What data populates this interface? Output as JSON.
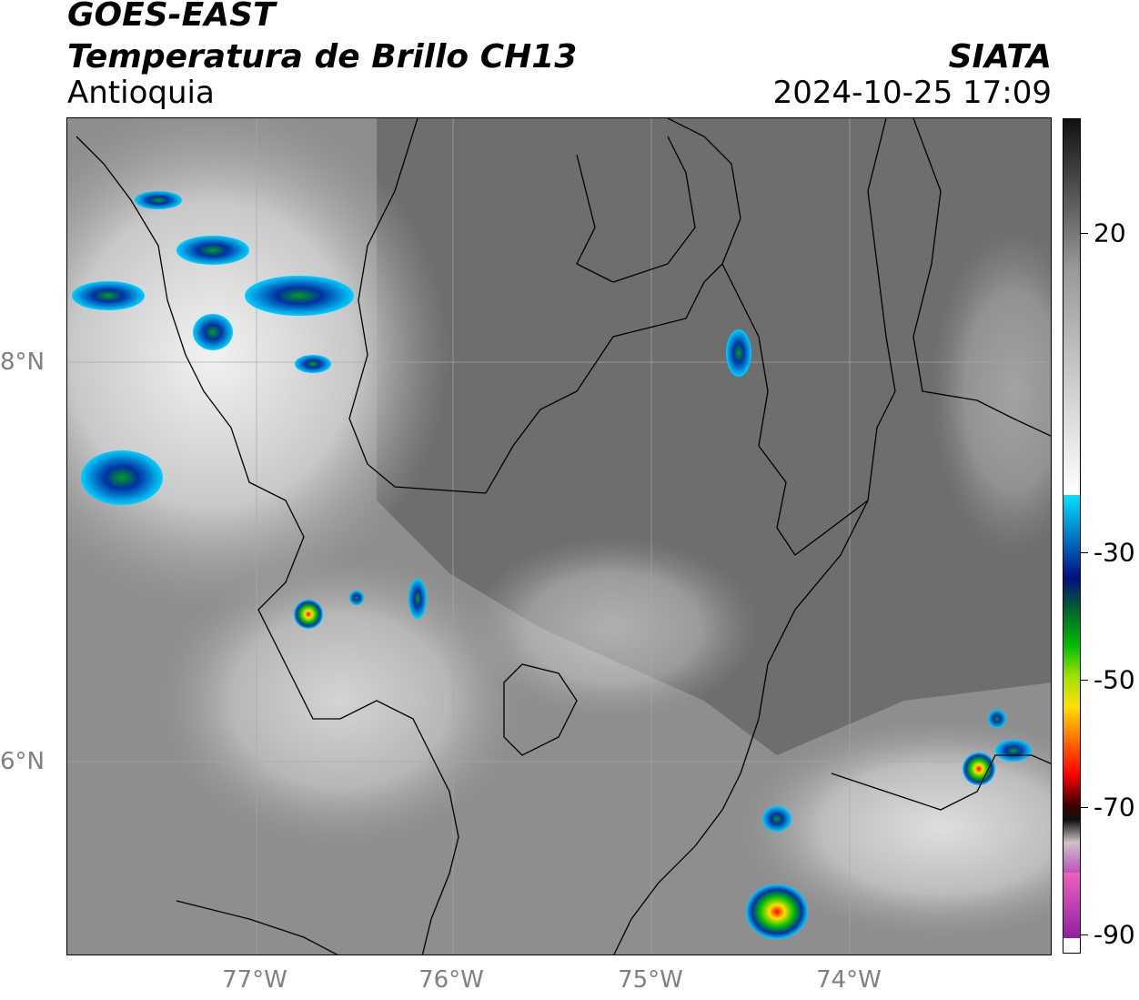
{
  "header": {
    "satellite": "GOES-EAST",
    "product": "Temperatura de Brillo CH13",
    "region": "Antioquia",
    "organization": "SIATA",
    "datetime": "2024-10-25 17:09"
  },
  "map": {
    "latitude_labels": [
      "8°N",
      "6°N"
    ],
    "longitude_labels": [
      "77°W",
      "76°W",
      "75°W",
      "74°W"
    ],
    "lat_range": [
      5.08,
      9.3
    ],
    "lon_range": [
      -77.95,
      -72.99
    ],
    "gridlines": true
  },
  "colorbar": {
    "unit_hint": "°C",
    "tick_labels": [
      "20",
      "-30",
      "-50",
      "-70",
      "-90"
    ],
    "range": [
      -93,
      38
    ],
    "tick_values": [
      20,
      -30,
      -50,
      -70,
      -90
    ]
  },
  "colors": {
    "background_gray": "#8f8f8f",
    "border_line": "#000000",
    "cold_cyan": "#00d0ff",
    "cold_blue": "#0030a0",
    "cold_green": "#00c000",
    "cold_yellow": "#ffe000",
    "cold_red": "#ff0000"
  }
}
